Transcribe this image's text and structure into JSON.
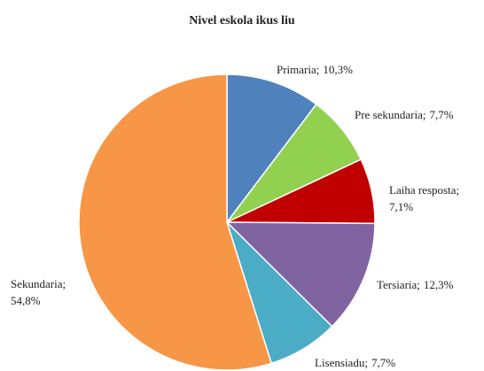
{
  "chart_data": {
    "type": "pie",
    "title": "Nivel eskola ikus liu",
    "categories": [
      "Primaria;",
      "Pre sekundaria;",
      "Laiha resposta;",
      "Tersiaria;",
      "Lisensiadu;",
      "Sekundaria;"
    ],
    "values": [
      10.3,
      7.7,
      7.1,
      12.3,
      7.7,
      54.8
    ],
    "value_labels": [
      "10,3%",
      "7,7%",
      "7,1%",
      "12,3%",
      "7,7%",
      "54,8%"
    ],
    "colors": [
      "#4f81bd",
      "#92d050",
      "#c00000",
      "#8064a2",
      "#4bacc6",
      "#f79646"
    ]
  }
}
